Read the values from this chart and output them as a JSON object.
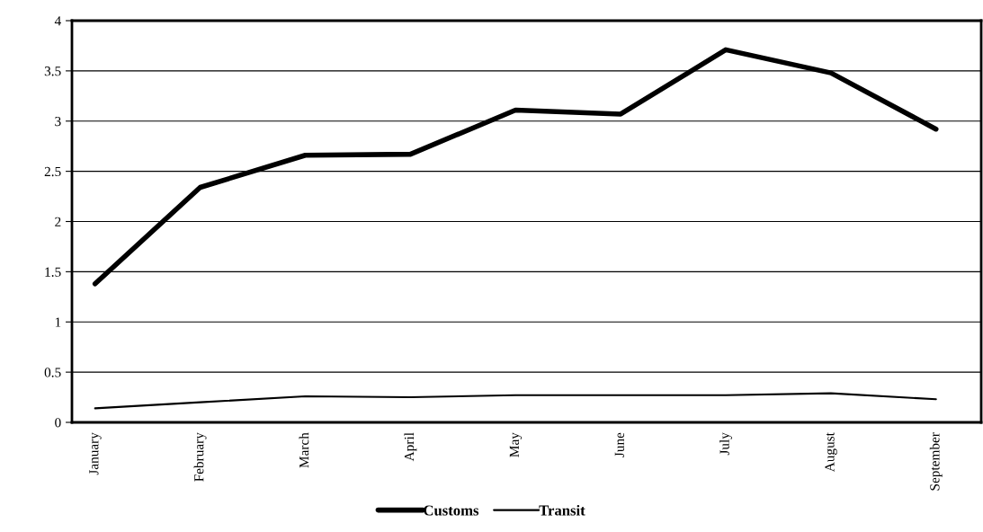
{
  "chart_data": {
    "type": "line",
    "categories": [
      "January",
      "February",
      "March",
      "April",
      "May",
      "June",
      "July",
      "August",
      "September"
    ],
    "series": [
      {
        "name": "Customs",
        "color": "#000000",
        "values": [
          1.38,
          2.34,
          2.66,
          2.67,
          3.11,
          3.07,
          3.71,
          3.48,
          2.92
        ]
      },
      {
        "name": "Transit",
        "color": "#000000",
        "values": [
          0.14,
          0.2,
          0.26,
          0.25,
          0.27,
          0.27,
          0.27,
          0.29,
          0.23
        ]
      }
    ],
    "ylim": [
      0,
      4
    ],
    "yticks": [
      0,
      0.5,
      1,
      1.5,
      2,
      2.5,
      3,
      3.5,
      4
    ],
    "grid": "y",
    "legend": "bottom",
    "marker": "none",
    "line_style": "solid"
  }
}
